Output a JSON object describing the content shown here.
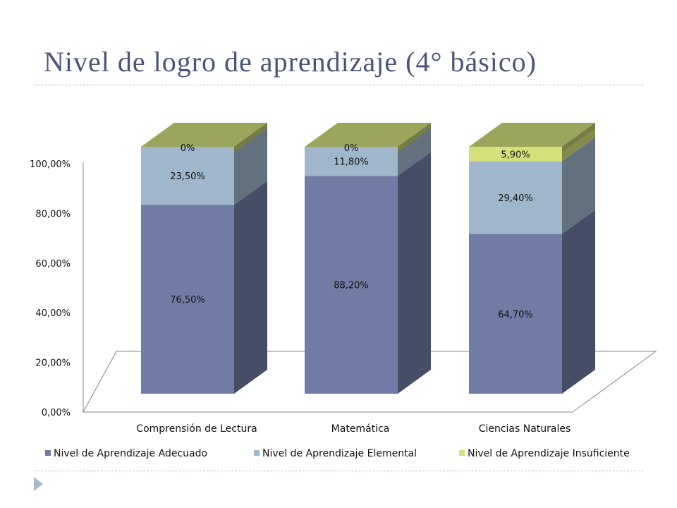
{
  "title": "Nivel  de logro de aprendizaje (4° básico)",
  "colors": {
    "title": "#4a5578",
    "series": [
      "#717ca6",
      "#9fb6cb",
      "#d6e07a"
    ],
    "top_face": "#9ba55b",
    "axis": "#868686"
  },
  "decor": {
    "bullet": "triangle-bullet-icon"
  },
  "chart_data": {
    "type": "bar",
    "stacked": true,
    "three_d": true,
    "categories": [
      "Comprensión de Lectura",
      "Matemática",
      "Ciencias Naturales"
    ],
    "series": [
      {
        "name": "Nivel de Aprendizaje Adecuado",
        "values": [
          76.5,
          88.2,
          64.7
        ],
        "labels": [
          "76,50%",
          "88,20%",
          "64,70%"
        ]
      },
      {
        "name": "Nivel de Aprendizaje Elemental",
        "values": [
          23.5,
          11.8,
          29.4
        ],
        "labels": [
          "23,50%",
          "11,80%",
          "29,40%"
        ]
      },
      {
        "name": "Nivel de Aprendizaje Insuficiente",
        "values": [
          0,
          0,
          5.9
        ],
        "labels": [
          "0%",
          "0%",
          "5,90%"
        ]
      }
    ],
    "y_ticks": [
      "0,00%",
      "20,00%",
      "40,00%",
      "60,00%",
      "80,00%",
      "100,00%"
    ],
    "ylim": [
      0,
      100
    ],
    "legend": "bottom",
    "grid": false
  }
}
